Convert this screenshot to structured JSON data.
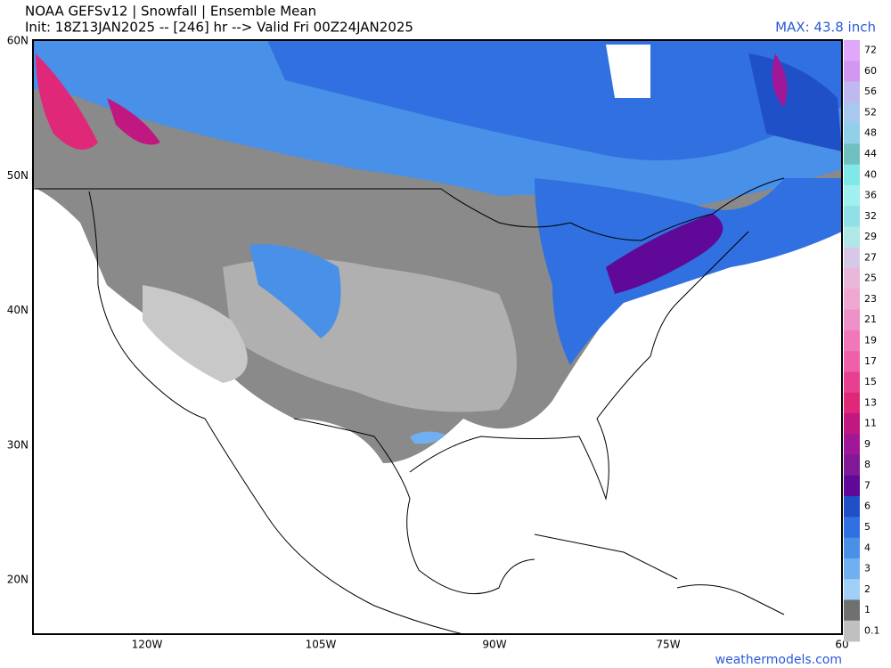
{
  "header": {
    "title": "NOAA GEFSv12 | Snowfall | Ensemble Mean",
    "subtitle": "Init: 18Z13JAN2025 -- [246] hr --> Valid Fri 00Z24JAN2025",
    "max": "MAX: 43.8 inch"
  },
  "map": {
    "lat_labels": [
      "60N",
      "50N",
      "40N",
      "30N",
      "20N"
    ],
    "lon_labels": [
      "120W",
      "105W",
      "90W",
      "75W",
      "60"
    ]
  },
  "colorbar": {
    "bands": [
      {
        "label": "72",
        "color": "#e0a8f8"
      },
      {
        "label": "60",
        "color": "#d098f0"
      },
      {
        "label": "56",
        "color": "#c0b8f0"
      },
      {
        "label": "52",
        "color": "#a8c8f0"
      },
      {
        "label": "48",
        "color": "#90d0e8"
      },
      {
        "label": "44",
        "color": "#70c0c0"
      },
      {
        "label": "40",
        "color": "#80e8e8"
      },
      {
        "label": "36",
        "color": "#a0f0f0"
      },
      {
        "label": "32",
        "color": "#90e0e8"
      },
      {
        "label": "29",
        "color": "#b0e8e8"
      },
      {
        "label": "27",
        "color": "#d8c8e8"
      },
      {
        "label": "25",
        "color": "#e8b8d8"
      },
      {
        "label": "23",
        "color": "#f0a8d0"
      },
      {
        "label": "21",
        "color": "#f090c8"
      },
      {
        "label": "19",
        "color": "#f078b8"
      },
      {
        "label": "17",
        "color": "#f060a8"
      },
      {
        "label": "15",
        "color": "#e84090"
      },
      {
        "label": "13",
        "color": "#e02878"
      },
      {
        "label": "11",
        "color": "#c01880"
      },
      {
        "label": "9",
        "color": "#a01898"
      },
      {
        "label": "8",
        "color": "#801898"
      },
      {
        "label": "7",
        "color": "#600898"
      },
      {
        "label": "6",
        "color": "#2050c8"
      },
      {
        "label": "5",
        "color": "#3070e0"
      },
      {
        "label": "4",
        "color": "#4890e8"
      },
      {
        "label": "3",
        "color": "#70b0f0"
      },
      {
        "label": "2",
        "color": "#a0d0f8"
      },
      {
        "label": "1",
        "color": "#707070"
      },
      {
        "label": "0.1",
        "color": "#c0c0c0"
      }
    ]
  },
  "footer": {
    "credit": "weathermodels.com"
  }
}
